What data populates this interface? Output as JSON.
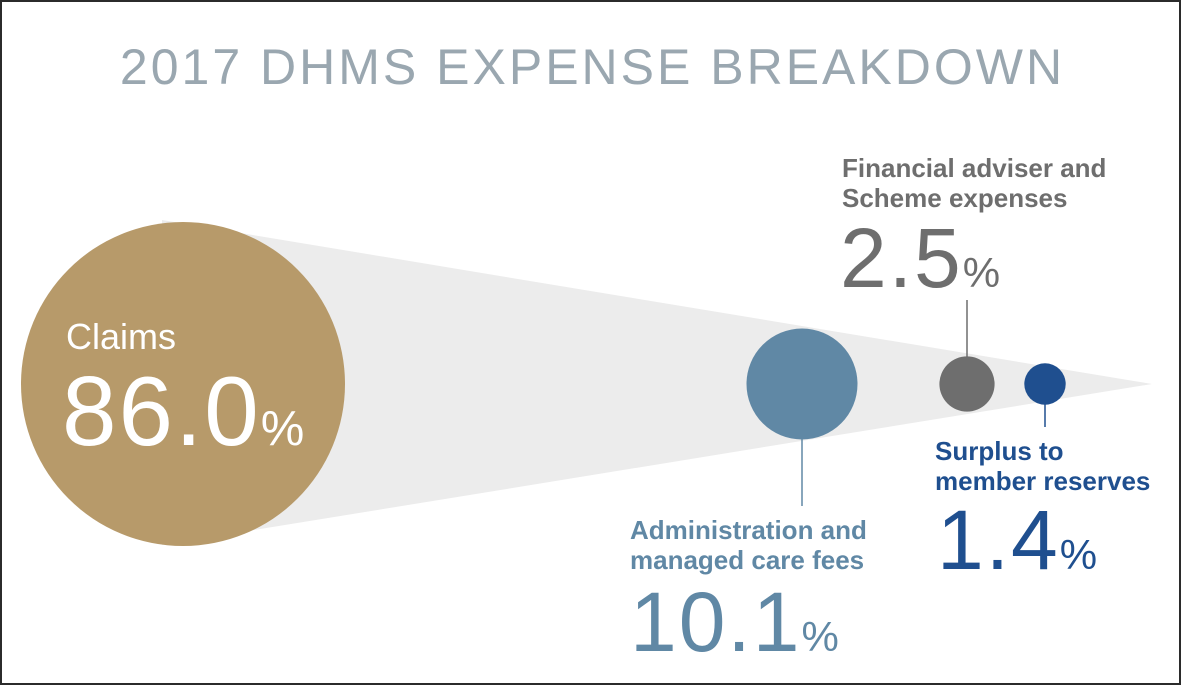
{
  "title": "2017 DHMS EXPENSE BREAKDOWN",
  "chart_data": {
    "type": "bubble",
    "title": "2017 DHMS EXPENSE BREAKDOWN",
    "unit": "%",
    "series": [
      {
        "label": "Claims",
        "value": 86.0,
        "display": "86.0",
        "color": "#b79a6a"
      },
      {
        "label": "Administration and managed care fees",
        "label_lines": [
          "Administration and",
          "managed care fees"
        ],
        "value": 10.1,
        "display": "10.1",
        "color": "#6088a5"
      },
      {
        "label": "Financial adviser and Scheme expenses",
        "label_lines": [
          "Financial adviser and",
          "Scheme expenses"
        ],
        "value": 2.5,
        "display": "2.5",
        "color": "#6e6e6e"
      },
      {
        "label": "Surplus to member reserves",
        "label_lines": [
          "Surplus to",
          "member reserves"
        ],
        "value": 1.4,
        "display": "1.4",
        "color": "#1f4f8f"
      }
    ]
  },
  "colors": {
    "cone": "#ececec",
    "title": "#9aa7b0"
  }
}
